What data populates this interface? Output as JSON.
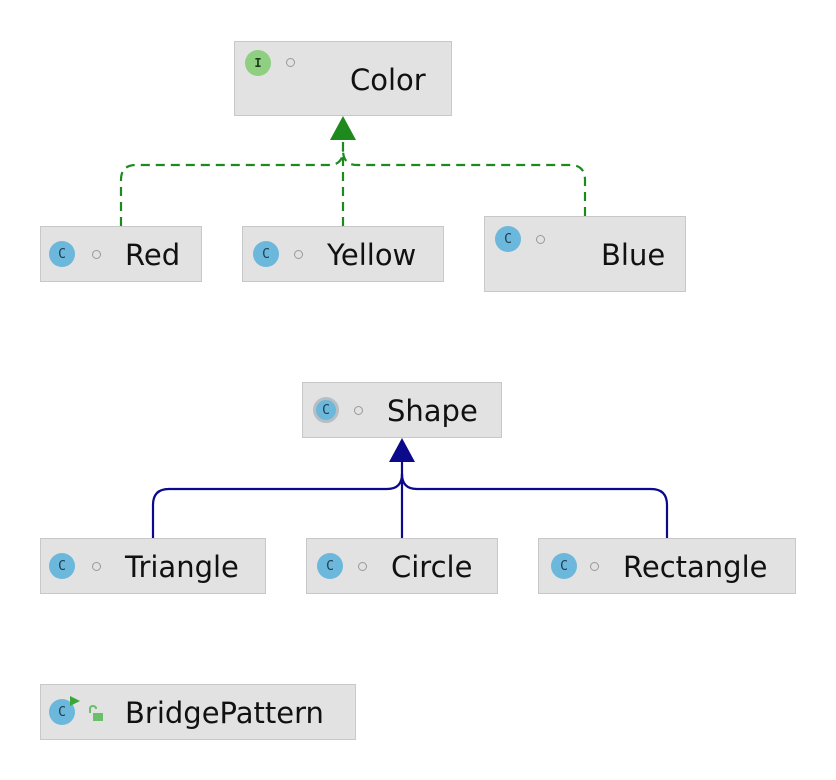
{
  "diagram": {
    "nodes": {
      "color": {
        "label": "Color",
        "badge": "I",
        "kind": "interface"
      },
      "red": {
        "label": "Red",
        "badge": "C",
        "kind": "class"
      },
      "yellow": {
        "label": "Yellow",
        "badge": "C",
        "kind": "class"
      },
      "blue": {
        "label": "Blue",
        "badge": "C",
        "kind": "class"
      },
      "shape": {
        "label": "Shape",
        "badge": "C",
        "kind": "abstract-class"
      },
      "triangle": {
        "label": "Triangle",
        "badge": "C",
        "kind": "class"
      },
      "circle": {
        "label": "Circle",
        "badge": "C",
        "kind": "class"
      },
      "rectangle": {
        "label": "Rectangle",
        "badge": "C",
        "kind": "class"
      },
      "bridgepattern": {
        "label": "BridgePattern",
        "badge": "C",
        "kind": "runnable-class"
      }
    },
    "edges": [
      {
        "from": "Red",
        "to": "Color",
        "type": "implements"
      },
      {
        "from": "Yellow",
        "to": "Color",
        "type": "implements"
      },
      {
        "from": "Blue",
        "to": "Color",
        "type": "implements"
      },
      {
        "from": "Triangle",
        "to": "Shape",
        "type": "extends"
      },
      {
        "from": "Circle",
        "to": "Shape",
        "type": "extends"
      },
      {
        "from": "Rectangle",
        "to": "Shape",
        "type": "extends"
      }
    ],
    "colors": {
      "implements_edge": "#1e8a1e",
      "extends_edge": "#0a0a8a",
      "class_badge": "#6bb8dc",
      "interface_badge": "#8fcf82",
      "node_fill": "#e2e2e2"
    }
  }
}
